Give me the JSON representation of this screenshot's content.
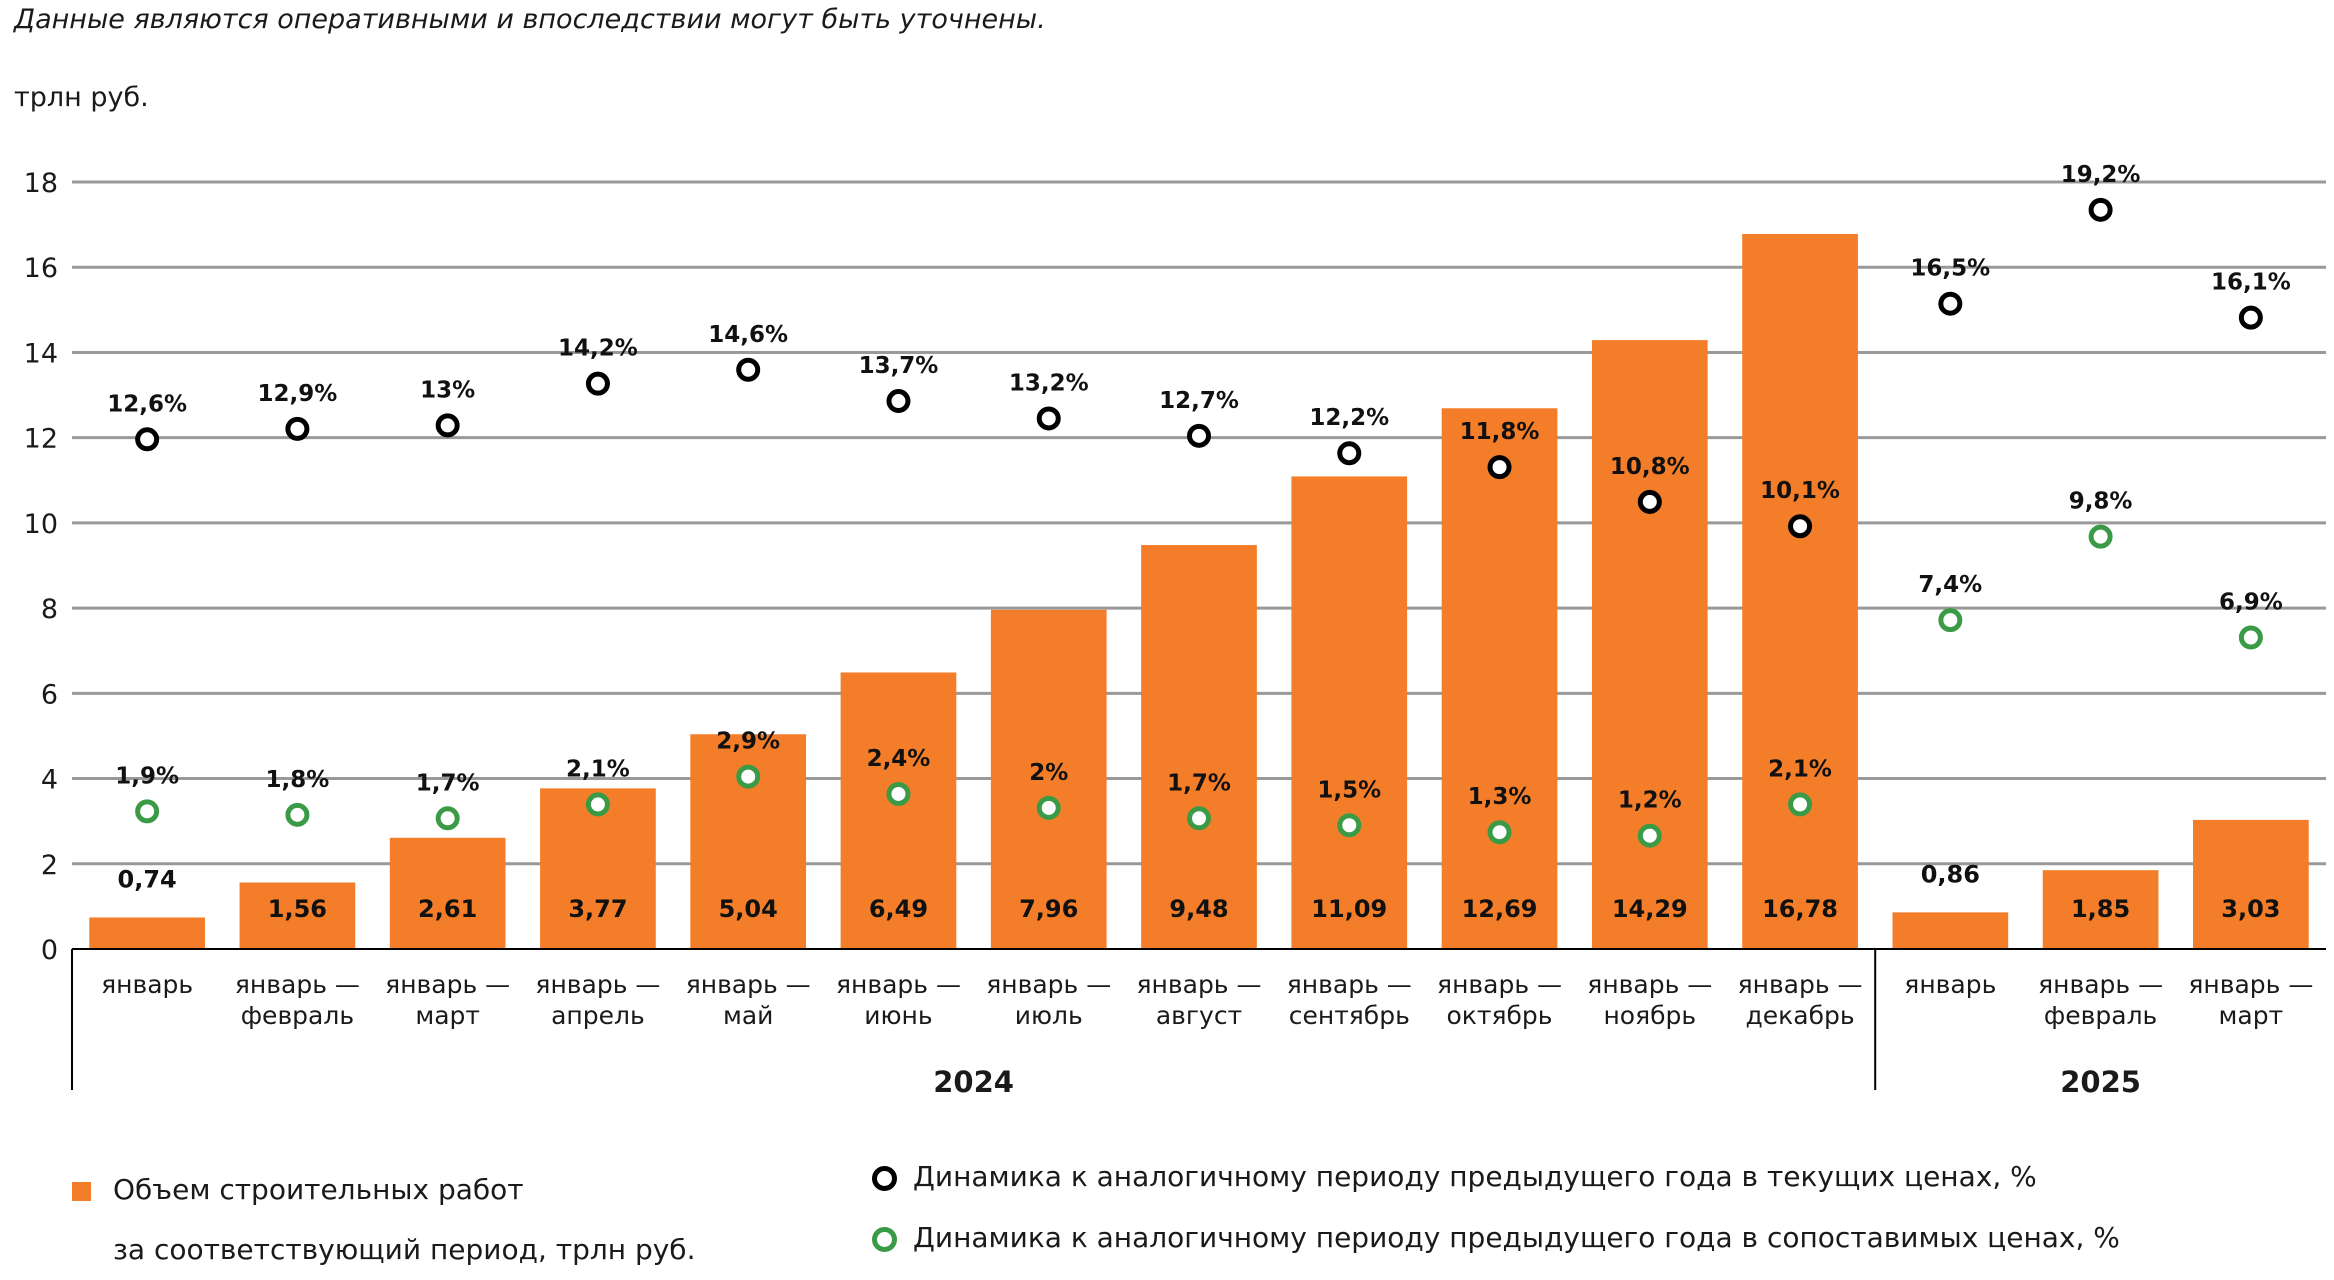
{
  "header": {
    "note": "Данные являются оперативными и впоследствии могут быть уточнены.",
    "unit": "трлн руб."
  },
  "colors": {
    "bar": "#f47d29",
    "current_prices": "#000000",
    "comparable_prices": "#3a9a46",
    "grid": "#999999"
  },
  "legend": {
    "bars_line1": "Объем строительных работ",
    "bars_line2": "за соответствующий период, трлн руб.",
    "current": "Динамика к аналогичному периоду предыдущего года в текущих ценах, %",
    "comparable": "Динамика к аналогичному периоду предыдущего года в сопоставимых ценах, %"
  },
  "chart_data": {
    "type": "bar",
    "title": "",
    "ylabel": "трлн руб.",
    "ylim": [
      0,
      18
    ],
    "yticks": [
      0,
      2,
      4,
      6,
      8,
      10,
      12,
      14,
      16,
      18
    ],
    "grid": true,
    "legend_position": "bottom",
    "groups": [
      {
        "label": "2024",
        "count": 12
      },
      {
        "label": "2025",
        "count": 3
      }
    ],
    "categories": [
      [
        "январь"
      ],
      [
        "январь —",
        "февраль"
      ],
      [
        "январь —",
        "март"
      ],
      [
        "январь —",
        "апрель"
      ],
      [
        "январь —",
        "май"
      ],
      [
        "январь —",
        "июнь"
      ],
      [
        "январь —",
        "июль"
      ],
      [
        "январь —",
        "август"
      ],
      [
        "январь —",
        "сентябрь"
      ],
      [
        "январь —",
        "октябрь"
      ],
      [
        "январь —",
        "ноябрь"
      ],
      [
        "январь —",
        "декабрь"
      ],
      [
        "январь"
      ],
      [
        "январь —",
        "февраль"
      ],
      [
        "январь —",
        "март"
      ]
    ],
    "series": [
      {
        "name": "Объем строительных работ за соответствующий период, трлн руб.",
        "kind": "bar",
        "values": [
          0.74,
          1.56,
          2.61,
          3.77,
          5.04,
          6.49,
          7.96,
          9.48,
          11.09,
          12.69,
          14.29,
          16.78,
          0.86,
          1.85,
          3.03
        ],
        "labels": [
          "0,74",
          "1,56",
          "2,61",
          "3,77",
          "5,04",
          "6,49",
          "7,96",
          "9,48",
          "11,09",
          "12,69",
          "14,29",
          "16,78",
          "0,86",
          "1,85",
          "3,03"
        ]
      },
      {
        "name": "Динамика к аналогичному периоду предыдущего года в текущих ценах, %",
        "kind": "scatter",
        "values": [
          12.6,
          12.9,
          13,
          14.2,
          14.6,
          13.7,
          13.2,
          12.7,
          12.2,
          11.8,
          10.8,
          10.1,
          16.5,
          19.2,
          16.1
        ],
        "labels": [
          "12,6%",
          "12,9%",
          "13%",
          "14,2%",
          "14,6%",
          "13,7%",
          "13,2%",
          "12,7%",
          "12,2%",
          "11,8%",
          "10,8%",
          "10,1%",
          "16,5%",
          "19,2%",
          "16,1%"
        ]
      },
      {
        "name": "Динамика к аналогичному периоду предыдущего года в сопоставимых ценах, %",
        "kind": "scatter",
        "values": [
          1.9,
          1.8,
          1.7,
          2.1,
          2.9,
          2.4,
          2,
          1.7,
          1.5,
          1.3,
          1.2,
          2.1,
          7.4,
          9.8,
          6.9
        ],
        "labels": [
          "1,9%",
          "1,8%",
          "1,7%",
          "2,1%",
          "2,9%",
          "2,4%",
          "2%",
          "1,7%",
          "1,5%",
          "1,3%",
          "1,2%",
          "2,1%",
          "7,4%",
          "9,8%",
          "6,9%"
        ]
      }
    ]
  }
}
